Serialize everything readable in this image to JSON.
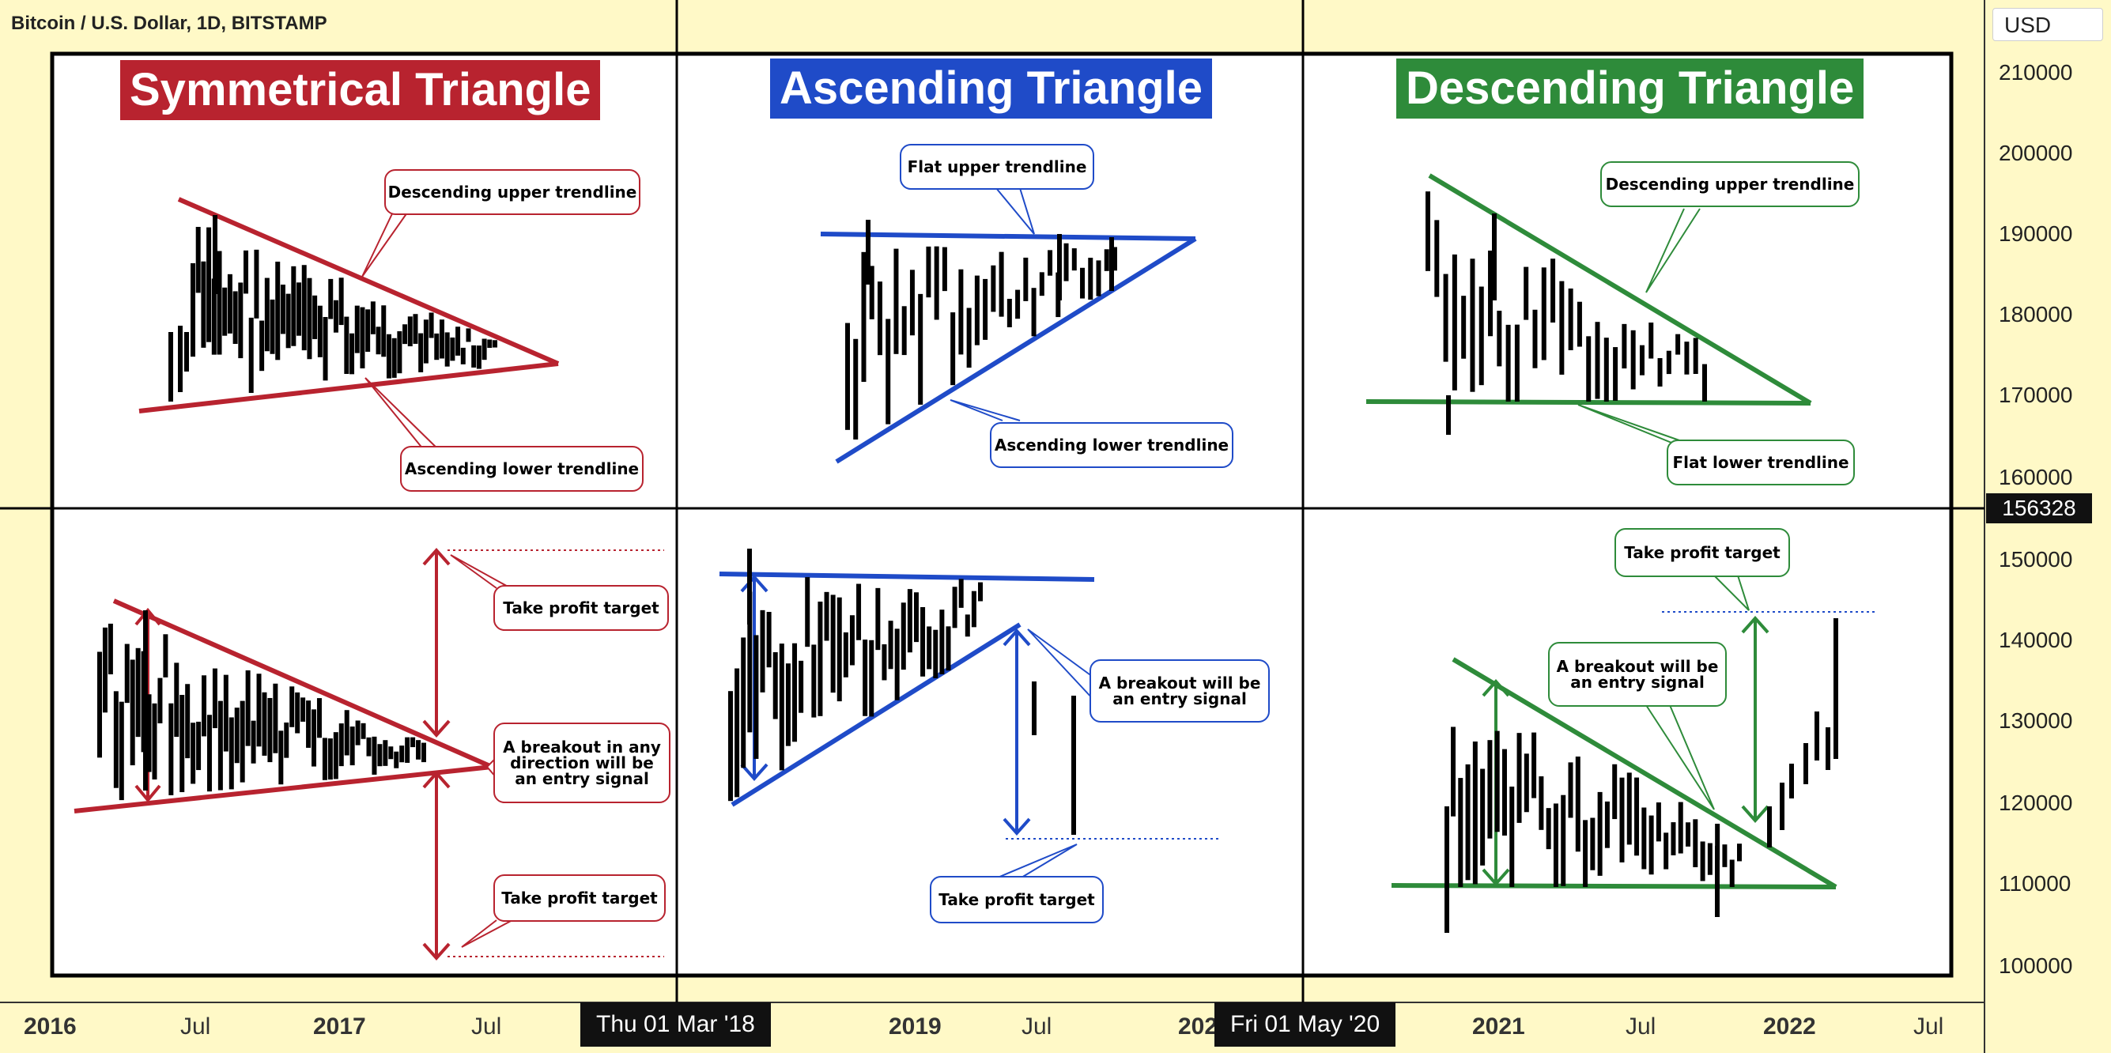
{
  "header": {
    "symbol": "Bitcoin / U.S. Dollar, 1D, BITSTAMP",
    "currency": "USD"
  },
  "price_axis": {
    "ticks": [
      "210000",
      "200000",
      "190000",
      "180000",
      "170000",
      "160000",
      "150000",
      "140000",
      "130000",
      "120000",
      "110000",
      "100000"
    ],
    "crosshair_price": "156328"
  },
  "time_axis": {
    "ticks": [
      {
        "label": "2016",
        "bold": true
      },
      {
        "label": "Jul",
        "bold": false
      },
      {
        "label": "2017",
        "bold": true
      },
      {
        "label": "Jul",
        "bold": false
      },
      {
        "label": "Jul",
        "bold": false
      },
      {
        "label": "2019",
        "bold": true
      },
      {
        "label": "Jul",
        "bold": false
      },
      {
        "label": "202",
        "bold": true
      },
      {
        "label": "2021",
        "bold": true
      },
      {
        "label": "Jul",
        "bold": false
      },
      {
        "label": "2022",
        "bold": true
      },
      {
        "label": "Jul",
        "bold": false
      }
    ],
    "crosshair_dates": [
      "Thu 01 Mar '18",
      "Fri 01 May '20"
    ]
  },
  "panels": {
    "symmetrical": {
      "title": "Symmetrical Triangle",
      "color": "#b8232f"
    },
    "ascending": {
      "title": "Ascending Triangle",
      "color": "#1f4bc8"
    },
    "descending": {
      "title": "Descending Triangle",
      "color": "#2e8b3a"
    }
  },
  "notes": {
    "sym_upper": "Descending upper trendline",
    "sym_lower": "Ascending lower trendline",
    "asc_upper": "Flat upper trendline",
    "asc_lower": "Ascending lower trendline",
    "desc_upper": "Descending upper trendline",
    "desc_lower": "Flat lower trendline",
    "sym_tp_top": "Take profit target",
    "sym_breakout": "A breakout in any\ndirection will be\nan entry signal",
    "sym_tp_bottom": "Take profit target",
    "asc_breakout": "A breakout will be\nan entry signal",
    "asc_tp": "Take profit target",
    "desc_tp": "Take profit target",
    "desc_breakout": "A breakout will be\nan entry signal"
  },
  "chart_data": {
    "type": "bar",
    "title": "",
    "y_axis": {
      "min": 100000,
      "max": 210000,
      "step": 10000
    },
    "x_axis": [
      "2016",
      "Jul",
      "2017",
      "Jul",
      "2019",
      "Jul",
      "2021",
      "Jul",
      "2022",
      "Jul"
    ],
    "crosshair": {
      "price": 156328,
      "dates": [
        "Thu 01 Mar '18",
        "Fri 01 May '20"
      ]
    }
  }
}
